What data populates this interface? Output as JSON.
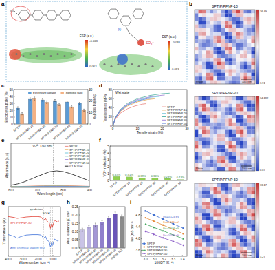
{
  "panel_labels": [
    "a",
    "b",
    "c",
    "d",
    "e",
    "f",
    "g",
    "h",
    "i"
  ],
  "panel_a": {
    "molecules": [
      {
        "esp_label": "ESP (a.u.)",
        "esp_top": -0.063,
        "esp_bottom": 0.063
      },
      {
        "esp_label": "ESP (a.u.)",
        "esp_top": -0.093,
        "esp_bottom": 0.093,
        "groups": [
          "N⁺",
          "SO₃⁻"
        ]
      }
    ]
  },
  "panel_b": {
    "images": [
      {
        "title": "SPTIP/PFNP-10",
        "channel": "Phase",
        "scale_bar": "100.0 nm",
        "colorbar_max": 36.49,
        "colorbar_min": 3.91
      },
      {
        "title": "SPTIP/PFNP-30",
        "channel": "Phase",
        "scale_bar": "100.0 nm",
        "colorbar_max": 34.182,
        "colorbar_min": 0.87
      },
      {
        "title": "SPTIP/PFNP-50",
        "channel": "Phase",
        "scale_bar": "100.0 nm",
        "colorbar_max": 33.17,
        "colorbar_min": 5.27
      }
    ]
  },
  "chart_data": [
    {
      "type": "bar",
      "ylabel": "Electrolyte uptake (%)",
      "y2label": "Swelling ratio (%)",
      "categories": [
        "SPTIP",
        "SPTIP/PFNP-10",
        "SPTIP/PFNP-20",
        "SPTIP/PFNP-30",
        "SPTIP/PFNP-40",
        "SPTIP/PFNP-50"
      ],
      "series": [
        {
          "name": "Electrolyte uptake",
          "color": "#5b9bd5",
          "values": [
            23,
            36,
            35,
            34,
            32,
            30
          ],
          "errors": [
            2,
            2,
            2,
            1.5,
            1.5,
            1.5
          ]
        },
        {
          "name": "Swelling ratio",
          "color": "#f4b183",
          "values": [
            9,
            22,
            19,
            17,
            15,
            12
          ],
          "errors": [
            1,
            1.5,
            1.2,
            1,
            1,
            1
          ],
          "axis": "y2"
        }
      ],
      "ylim": [
        0,
        50
      ],
      "yticks": [
        0,
        10,
        20,
        30,
        40,
        50
      ],
      "y2lim": [
        0,
        30
      ],
      "y2ticks": [
        0,
        10,
        20,
        30
      ],
      "legend": "upper right"
    },
    {
      "type": "line",
      "xlabel": "Tensile strain (%)",
      "ylabel": "Tensile stress (MPa)",
      "annotation": "Wet state",
      "xlim": [
        0,
        30
      ],
      "xticks": [
        0,
        10,
        20,
        30
      ],
      "ylim": [
        0,
        80
      ],
      "yticks": [
        0,
        20,
        40,
        60,
        80
      ],
      "legend": "lower right",
      "series": [
        {
          "name": "SPTIP",
          "color": "#e8837e",
          "x": [
            0,
            1,
            3,
            6,
            9,
            12,
            13.5
          ],
          "values": [
            0,
            14,
            28,
            38,
            44,
            48,
            49
          ]
        },
        {
          "name": "SPTIP/PFNP-10",
          "color": "#e3a857",
          "x": [
            0,
            1,
            3,
            6,
            10,
            14,
            17
          ],
          "values": [
            0,
            16,
            32,
            44,
            53,
            58,
            60
          ]
        },
        {
          "name": "SPTIP/PFNP-20",
          "color": "#69c3d9",
          "x": [
            0,
            1,
            3,
            6,
            10,
            15,
            19
          ],
          "values": [
            0,
            17,
            34,
            47,
            56,
            63,
            65
          ]
        },
        {
          "name": "SPTIP/PFNP-30",
          "color": "#4dafa0",
          "x": [
            0,
            1,
            3,
            6,
            10,
            15,
            20,
            23
          ],
          "values": [
            0,
            18,
            36,
            50,
            60,
            67,
            71,
            72
          ]
        },
        {
          "name": "SPTIP/PFNP-40",
          "color": "#9c7ed6",
          "x": [
            0,
            1,
            3,
            6,
            10,
            15,
            19,
            21
          ],
          "values": [
            0,
            17,
            35,
            48,
            58,
            64,
            67,
            68
          ]
        },
        {
          "name": "SPTIP/PFNP-50",
          "color": "#5a7fd6",
          "x": [
            0,
            1,
            3,
            6,
            10,
            14,
            16
          ],
          "values": [
            0,
            16,
            33,
            46,
            55,
            60,
            61
          ]
        }
      ]
    },
    {
      "type": "line",
      "xlabel": "Wavelength (nm)",
      "ylabel": "Absorbance (a.u.)",
      "annotation": {
        "text": "VO²⁺ (762 nm)",
        "x": 762
      },
      "x": [
        600,
        625,
        650,
        675,
        700,
        725,
        750,
        775,
        800,
        825,
        850,
        875,
        900
      ],
      "xlim": [
        600,
        900
      ],
      "xticks": [
        600,
        700,
        800,
        900
      ],
      "ylim": [
        0,
        2.4
      ],
      "tick_labels": "x",
      "legend": "upper right",
      "series": [
        {
          "name": "SPTIP",
          "color": "#e8837e",
          "values": [
            0.05,
            0.05,
            0.06,
            0.07,
            0.08,
            0.09,
            0.1,
            0.1,
            0.1,
            0.09,
            0.08,
            0.07,
            0.06
          ]
        },
        {
          "name": "SPTIP/PFNP-10",
          "color": "#e3a857",
          "values": [
            0.04,
            0.04,
            0.05,
            0.06,
            0.07,
            0.08,
            0.08,
            0.09,
            0.08,
            0.08,
            0.07,
            0.06,
            0.05
          ]
        },
        {
          "name": "SPTIP/PFNP-20",
          "color": "#69c3d9",
          "values": [
            0.03,
            0.04,
            0.04,
            0.05,
            0.06,
            0.07,
            0.07,
            0.07,
            0.07,
            0.06,
            0.06,
            0.05,
            0.04
          ]
        },
        {
          "name": "SPTIP/PFNP-30",
          "color": "#4dafa0",
          "values": [
            0.03,
            0.03,
            0.04,
            0.04,
            0.05,
            0.05,
            0.06,
            0.06,
            0.06,
            0.05,
            0.05,
            0.04,
            0.04
          ]
        },
        {
          "name": "SPTIP/PFNP-40",
          "color": "#9c7ed6",
          "values": [
            0.02,
            0.02,
            0.03,
            0.03,
            0.04,
            0.04,
            0.04,
            0.05,
            0.04,
            0.04,
            0.04,
            0.03,
            0.03
          ]
        },
        {
          "name": "SPTIP/PFNP-50",
          "color": "#5a7fd6",
          "values": [
            0.01,
            0.01,
            0.02,
            0.02,
            0.02,
            0.03,
            0.03,
            0.03,
            0.03,
            0.03,
            0.02,
            0.02,
            0.02
          ]
        },
        {
          "name": "0.1 M VO²⁺",
          "color": "#111111",
          "values": [
            0.12,
            0.19,
            0.3,
            0.44,
            0.59,
            0.73,
            0.86,
            0.9,
            0.86,
            0.76,
            0.63,
            0.49,
            0.36
          ]
        }
      ]
    },
    {
      "type": "bar",
      "ylabel": "VO²⁺ reduction (%)",
      "categories": [
        "SPTIP",
        "SPTIP/PFNP-10",
        "SPTIP/PFNP-20",
        "SPTIP/PFNP-30",
        "SPTIP/PFNP-40",
        "SPTIP/PFNP-50"
      ],
      "values": [
        0.57,
        0.51,
        0.39,
        0.36,
        0.29,
        0.13
      ],
      "value_labels": [
        "0.57%",
        "0.51%",
        "0.39%",
        "0.36%",
        "0.29%",
        "0.13%"
      ],
      "color": "#92d050",
      "ylim": [
        0,
        5
      ],
      "yticks": [
        0,
        1,
        2,
        3,
        4,
        5
      ],
      "data_labels": true
    },
    {
      "type": "line",
      "xlabel": "Wavenumber (cm⁻¹)",
      "ylabel": "Transmittance (%)",
      "tick_labels": "x",
      "x": [
        4000,
        3600,
        3400,
        3200,
        3000,
        2800,
        2400,
        2000,
        1800,
        1640,
        1500,
        1400,
        1250,
        1170,
        1100,
        1030,
        900,
        800,
        700,
        600
      ],
      "xlim": [
        4000,
        500
      ],
      "xticks": [
        4000,
        3000,
        2000,
        1000
      ],
      "ylim": [
        0,
        110
      ],
      "annotations": [
        {
          "text": "pyridinium",
          "x": [
            1640
          ]
        },
        {
          "text": "-SO₃H",
          "x": [
            1170,
            1030
          ]
        }
      ],
      "series": [
        {
          "name": "SPTIP/PFNP-30",
          "color": "#e03c31",
          "values": [
            88,
            86,
            84,
            85,
            86,
            87,
            88,
            88,
            87,
            80,
            84,
            78,
            74,
            62,
            72,
            66,
            80,
            78,
            76,
            78
          ]
        },
        {
          "name": "After chemical stability test",
          "color": "#3b6fd8",
          "values": [
            48,
            44,
            40,
            43,
            45,
            47,
            48,
            48,
            47,
            40,
            44,
            36,
            32,
            20,
            30,
            24,
            38,
            36,
            34,
            36
          ]
        }
      ]
    },
    {
      "type": "bar",
      "ylabel": "Area resistance (Ω cm²)",
      "categories": [
        "SPTIP",
        "SPTIP/PFNP-10",
        "SPTIP/PFNP-20",
        "SPTIP/PFNP-30",
        "SPTIP/PFNP-40",
        "SPTIP/PFNP-50",
        "Nafion 212"
      ],
      "values": [
        0.11,
        0.125,
        0.14,
        0.155,
        0.18,
        0.205,
        0.19
      ],
      "errors": [
        0.01,
        0.01,
        0.01,
        0.01,
        0.012,
        0.012,
        0.01
      ],
      "colors": [
        "#c9c3e6",
        "#b7aee0",
        "#a497d6",
        "#9080cc",
        "#7c6ac2",
        "#6a55b8",
        "#8b8b8b"
      ],
      "ylim": [
        0,
        0.25
      ],
      "yticks": [
        {
          "value": 0,
          "label": "0.00"
        },
        0.05,
        {
          "value": 0.1,
          "label": "0.10"
        },
        0.15,
        {
          "value": 0.2,
          "label": "0.20"
        },
        0.25
      ]
    },
    {
      "type": "line",
      "xlabel": "1000/T (K⁻¹)",
      "ylabel": "lnσ (mS cm⁻¹)",
      "x": [
        3,
        3.09,
        3.19,
        3.3,
        3.41
      ],
      "xlim": [
        2.95,
        3.45
      ],
      "xticks": [
        {
          "value": 3,
          "label": "3.0"
        },
        3.1,
        3.2,
        3.3,
        3.4
      ],
      "ylim": [
        3.4,
        5.1
      ],
      "yticks": [
        3.6,
        {
          "value": 4,
          "label": "4.0"
        },
        4.4,
        4.8
      ],
      "legend": "lower left",
      "annotations": [
        "Ea=0.124 eV",
        "Ea=0.115 eV",
        "Ea=0.106 eV",
        "Ea=0.099 eV"
      ],
      "series": [
        {
          "name": "SPTIP",
          "color": "#3f6fd1",
          "marker": "square",
          "values": [
            4.95,
            4.82,
            4.67,
            4.51,
            4.36
          ]
        },
        {
          "name": "SPTIP/PFNP-10",
          "color": "#e58a3a",
          "marker": "circle",
          "values": [
            4.72,
            4.6,
            4.47,
            4.32,
            4.17
          ]
        },
        {
          "name": "SPTIP/PFNP-30",
          "color": "#3fa45b",
          "marker": "triangle",
          "values": [
            4.5,
            4.39,
            4.27,
            4.13,
            4
          ]
        },
        {
          "name": "SPTIP/PFNP-50",
          "color": "#8a5cc7",
          "marker": "diamond",
          "values": [
            4.25,
            4.15,
            4.03,
            3.91,
            3.78
          ]
        }
      ]
    }
  ]
}
